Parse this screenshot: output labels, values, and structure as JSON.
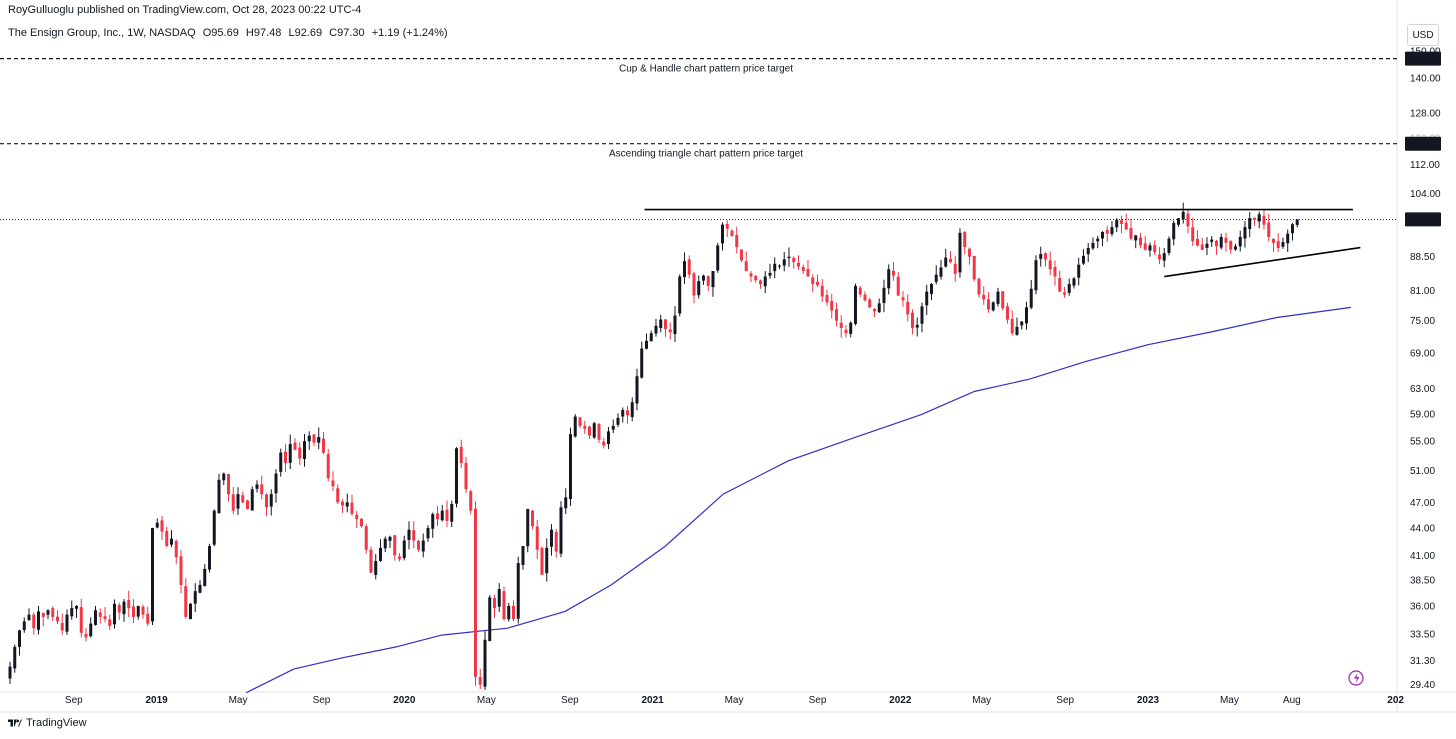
{
  "header": {
    "credit": "RoyGulluoglu published on TradingView.com, Oct 28, 2023 00:22 UTC-4",
    "symbol": "The Ensign Group, Inc., 1W, NASDAQ",
    "open": "O95.69",
    "high": "H97.48",
    "low": "L92.69",
    "close": "C97.30",
    "change": "+1.19 (+1.24%)",
    "currency": "USD"
  },
  "footer": {
    "brand": "TradingView"
  },
  "colors": {
    "up": "#131722",
    "down": "#f23645",
    "ma": "#3030c8",
    "grid": "#f0f3fa",
    "line": "#000000"
  },
  "chart_data": {
    "type": "candlestick",
    "timeframe": "1W",
    "y_scale": "log",
    "ylim": [
      29.0,
      152.0
    ],
    "price_ticks": [
      29.4,
      31.3,
      33.5,
      36.0,
      38.5,
      41.0,
      44.0,
      47.0,
      51.0,
      55.0,
      59.0,
      63.0,
      69.0,
      75.0,
      81.0,
      88.5,
      104.0,
      112.0,
      128.0,
      140.0,
      150.0
    ],
    "price_tick_labels": [
      "29.40",
      "31.30",
      "33.50",
      "36.00",
      "38.50",
      "41.00",
      "44.00",
      "47.00",
      "51.00",
      "55.00",
      "59.00",
      "63.00",
      "69.00",
      "75.00",
      "81.00",
      "88.50",
      "104.00",
      "112.00",
      "128.00",
      "140.00",
      "150.00"
    ],
    "faint_tick_labels": [
      "120.00"
    ],
    "x_start": "2018-05-27",
    "x_ticks": [
      {
        "date": "2018-09-01",
        "label": "Sep",
        "year": false
      },
      {
        "date": "2019-01-01",
        "label": "2019",
        "year": true
      },
      {
        "date": "2019-05-01",
        "label": "May",
        "year": false
      },
      {
        "date": "2019-09-01",
        "label": "Sep",
        "year": false
      },
      {
        "date": "2020-01-01",
        "label": "2020",
        "year": true
      },
      {
        "date": "2020-05-01",
        "label": "May",
        "year": false
      },
      {
        "date": "2020-09-01",
        "label": "Sep",
        "year": false
      },
      {
        "date": "2021-01-01",
        "label": "2021",
        "year": true
      },
      {
        "date": "2021-05-01",
        "label": "May",
        "year": false
      },
      {
        "date": "2021-09-01",
        "label": "Sep",
        "year": false
      },
      {
        "date": "2022-01-01",
        "label": "2022",
        "year": true
      },
      {
        "date": "2022-05-01",
        "label": "May",
        "year": false
      },
      {
        "date": "2022-09-01",
        "label": "Sep",
        "year": false
      },
      {
        "date": "2023-01-01",
        "label": "2023",
        "year": true
      },
      {
        "date": "2023-05-01",
        "label": "May",
        "year": false
      },
      {
        "date": "2023-08-01",
        "label": "Aug",
        "year": false
      },
      {
        "date": "2024-01-01",
        "label": "202",
        "year": true
      }
    ],
    "closes": [
      30.8,
      32.4,
      33.8,
      34.6,
      35.2,
      34.0,
      35.5,
      35.0,
      35.6,
      35.0,
      34.6,
      33.8,
      35.2,
      35.8,
      36.0,
      33.6,
      33.2,
      34.4,
      35.6,
      35.0,
      34.8,
      34.2,
      36.2,
      35.4,
      36.4,
      35.8,
      35.0,
      36.0,
      35.2,
      34.4,
      44.0,
      44.6,
      43.6,
      42.0,
      42.8,
      40.8,
      38.0,
      35.0,
      36.2,
      37.4,
      38.0,
      39.6,
      42.0,
      46.0,
      49.8,
      50.6,
      48.0,
      46.0,
      48.0,
      47.0,
      46.2,
      48.6,
      49.2,
      48.0,
      46.4,
      48.0,
      50.6,
      53.4,
      52.0,
      54.6,
      53.8,
      52.6,
      55.0,
      55.8,
      54.8,
      55.6,
      53.4,
      50.0,
      49.0,
      47.0,
      46.6,
      47.0,
      45.6,
      45.0,
      44.2,
      41.6,
      39.2,
      40.4,
      41.8,
      42.8,
      43.0,
      41.0,
      40.6,
      42.6,
      43.8,
      42.6,
      41.6,
      42.6,
      44.0,
      45.6,
      45.0,
      46.0,
      44.8,
      46.8,
      54.0,
      52.0,
      48.6,
      46.0,
      30.0,
      29.4,
      33.0,
      36.8,
      35.8,
      37.6,
      34.8,
      36.0,
      34.8,
      40.2,
      42.0,
      46.2,
      44.2,
      41.6,
      39.0,
      41.8,
      43.8,
      41.4,
      46.4,
      47.6,
      56.0,
      58.6,
      57.2,
      56.8,
      55.8,
      57.6,
      55.2,
      54.4,
      56.4,
      57.2,
      58.4,
      59.6,
      58.8,
      60.8,
      65.0,
      69.8,
      71.2,
      72.6,
      74.0,
      75.2,
      73.4,
      72.8,
      76.0,
      84.0,
      87.4,
      84.4,
      80.0,
      83.0,
      84.2,
      82.0,
      85.2,
      91.0,
      96.0,
      95.0,
      93.2,
      90.6,
      87.6,
      85.2,
      84.0,
      83.2,
      82.4,
      84.0,
      84.8,
      86.8,
      86.4,
      87.8,
      88.4,
      87.2,
      86.2,
      85.2,
      84.0,
      82.4,
      82.2,
      79.8,
      78.6,
      77.0,
      75.0,
      73.6,
      72.6,
      74.6,
      82.0,
      80.2,
      79.0,
      77.6,
      76.8,
      78.4,
      81.6,
      85.6,
      84.2,
      80.0,
      79.0,
      76.2,
      73.6,
      74.2,
      77.8,
      80.8,
      82.4,
      84.4,
      86.0,
      88.2,
      87.2,
      84.6,
      94.0,
      90.6,
      88.4,
      83.4,
      80.2,
      79.2,
      77.2,
      78.6,
      80.8,
      77.4,
      75.2,
      72.6,
      73.8,
      74.8,
      77.6,
      81.4,
      87.6,
      89.0,
      87.8,
      85.6,
      84.0,
      80.8,
      80.2,
      82.4,
      83.6,
      86.6,
      88.6,
      90.4,
      91.6,
      92.6,
      94.2,
      93.8,
      95.4,
      97.2,
      96.2,
      94.8,
      92.6,
      93.4,
      91.0,
      90.0,
      91.0,
      89.4,
      87.8,
      89.2,
      92.6,
      96.4,
      97.6,
      99.2,
      95.6,
      92.0,
      91.0,
      90.0,
      91.4,
      92.4,
      90.8,
      93.0,
      91.6,
      90.0,
      90.8,
      93.0,
      95.4,
      97.6,
      97.2,
      98.6,
      96.0,
      93.0,
      91.6,
      90.4,
      91.8,
      93.8,
      96.1,
      97.3
    ],
    "moving_average": {
      "points": [
        {
          "date": "2019-05-13",
          "value": 28.8
        },
        {
          "date": "2019-07-22",
          "value": 30.6
        },
        {
          "date": "2019-10-01",
          "value": 31.5
        },
        {
          "date": "2019-12-20",
          "value": 32.4
        },
        {
          "date": "2020-02-25",
          "value": 33.4
        },
        {
          "date": "2020-06-01",
          "value": 34.0
        },
        {
          "date": "2020-08-25",
          "value": 35.5
        },
        {
          "date": "2020-11-01",
          "value": 38.0
        },
        {
          "date": "2021-01-20",
          "value": 42.0
        },
        {
          "date": "2021-04-15",
          "value": 48.0
        },
        {
          "date": "2021-07-20",
          "value": 52.3
        },
        {
          "date": "2021-10-25",
          "value": 55.5
        },
        {
          "date": "2022-02-01",
          "value": 58.9
        },
        {
          "date": "2022-04-20",
          "value": 62.5
        },
        {
          "date": "2022-07-10",
          "value": 64.5
        },
        {
          "date": "2022-10-01",
          "value": 67.5
        },
        {
          "date": "2023-01-01",
          "value": 70.5
        },
        {
          "date": "2023-04-10",
          "value": 73.0
        },
        {
          "date": "2023-07-10",
          "value": 75.6
        },
        {
          "date": "2023-10-27",
          "value": 77.6
        }
      ]
    },
    "horizontal_lines": [
      {
        "price": 147.15,
        "label": "147.15",
        "annotation": "Cup & Handle chart pattern price target",
        "style": "dashed"
      },
      {
        "price": 118.22,
        "label": "118.22",
        "annotation": "Ascending triangle chart pattern price target",
        "style": "dashed"
      }
    ],
    "current_price": {
      "price": 97.3,
      "label": "97.30"
    },
    "trendlines": [
      {
        "name": "resistance",
        "points": [
          {
            "date": "2020-12-20",
            "value": 99.8
          },
          {
            "date": "2023-10-30",
            "value": 99.8
          }
        ]
      },
      {
        "name": "support",
        "points": [
          {
            "date": "2023-01-25",
            "value": 84.0
          },
          {
            "date": "2023-11-10",
            "value": 90.5
          }
        ]
      }
    ]
  }
}
